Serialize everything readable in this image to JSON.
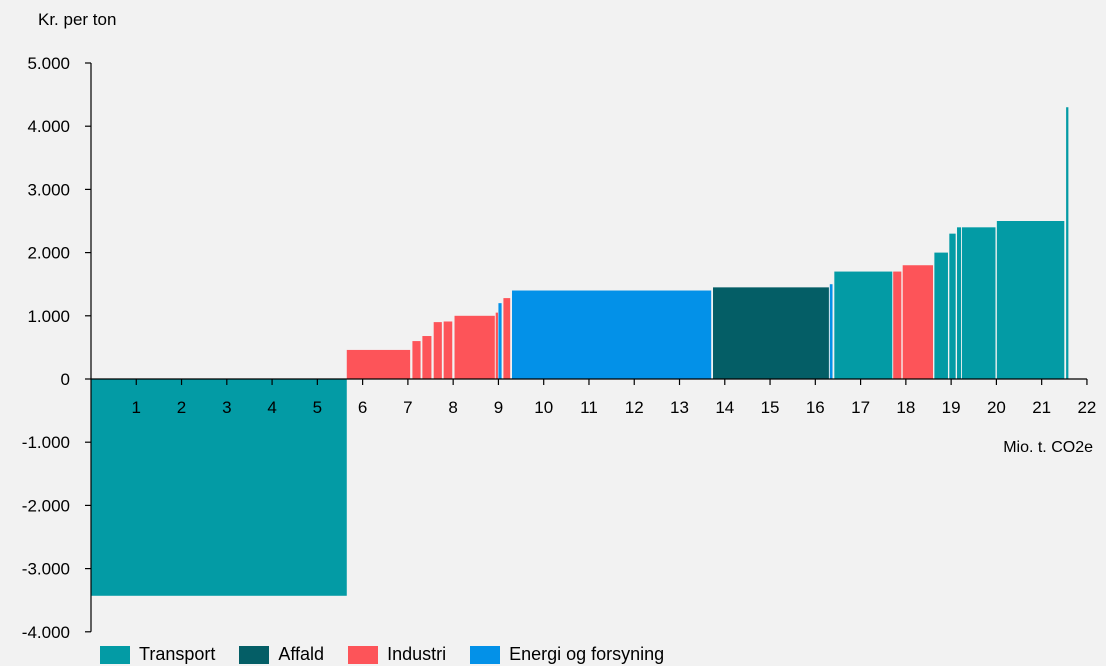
{
  "chart_data": {
    "type": "bar",
    "subtype": "variable-width bar (marginal abatement cost curve)",
    "ylabel": "Kr. per ton",
    "xlabel": "Mio. t. CO2e",
    "xlim": [
      0,
      22
    ],
    "ylim": [
      -4000,
      5000
    ],
    "x_ticks": [
      "1",
      "2",
      "3",
      "4",
      "5",
      "6",
      "7",
      "8",
      "9",
      "10",
      "11",
      "12",
      "13",
      "14",
      "15",
      "16",
      "17",
      "18",
      "19",
      "20",
      "21",
      "22"
    ],
    "y_ticks": [
      {
        "value": 5000,
        "label": "5.000"
      },
      {
        "value": 4000,
        "label": "4.000"
      },
      {
        "value": 3000,
        "label": "3.000"
      },
      {
        "value": 2000,
        "label": "2.000"
      },
      {
        "value": 1000,
        "label": "1.000"
      },
      {
        "value": 0,
        "label": "0"
      },
      {
        "value": -1000,
        "label": "-1.000"
      },
      {
        "value": -2000,
        "label": "-2.000"
      },
      {
        "value": -3000,
        "label": "-3.000"
      },
      {
        "value": -4000,
        "label": "-4.000"
      }
    ],
    "grid": false,
    "legend_position": "bottom",
    "categories": [
      {
        "name": "Transport",
        "color": "#039ba5"
      },
      {
        "name": "Affald",
        "color": "#045e66"
      },
      {
        "name": "Industri",
        "color": "#fd5459"
      },
      {
        "name": "Energi og forsyning",
        "color": "#0391e8"
      }
    ],
    "bars": [
      {
        "category": "Transport",
        "x_start": 0.0,
        "x_end": 5.65,
        "value": -3430
      },
      {
        "category": "Industri",
        "x_start": 5.65,
        "x_end": 7.05,
        "value": 460
      },
      {
        "category": "Industri",
        "x_start": 7.1,
        "x_end": 7.28,
        "value": 600
      },
      {
        "category": "Industri",
        "x_start": 7.32,
        "x_end": 7.52,
        "value": 680
      },
      {
        "category": "Industri",
        "x_start": 7.57,
        "x_end": 7.75,
        "value": 900
      },
      {
        "category": "Industri",
        "x_start": 7.79,
        "x_end": 7.98,
        "value": 910
      },
      {
        "category": "Industri",
        "x_start": 8.03,
        "x_end": 8.92,
        "value": 1000
      },
      {
        "category": "Industri",
        "x_start": 8.94,
        "x_end": 8.99,
        "value": 1050
      },
      {
        "category": "Energi og forsyning",
        "x_start": 9.0,
        "x_end": 9.07,
        "value": 1200
      },
      {
        "category": "Industri",
        "x_start": 9.11,
        "x_end": 9.26,
        "value": 1280
      },
      {
        "category": "Energi og forsyning",
        "x_start": 9.3,
        "x_end": 13.7,
        "value": 1400
      },
      {
        "category": "Affald",
        "x_start": 13.74,
        "x_end": 16.3,
        "value": 1450
      },
      {
        "category": "Energi og forsyning",
        "x_start": 16.32,
        "x_end": 16.38,
        "value": 1500
      },
      {
        "category": "Transport",
        "x_start": 16.42,
        "x_end": 17.7,
        "value": 1700
      },
      {
        "category": "Industri",
        "x_start": 17.72,
        "x_end": 17.9,
        "value": 1700
      },
      {
        "category": "Industri",
        "x_start": 17.93,
        "x_end": 18.6,
        "value": 1800
      },
      {
        "category": "Transport",
        "x_start": 18.63,
        "x_end": 18.93,
        "value": 2000
      },
      {
        "category": "Transport",
        "x_start": 18.96,
        "x_end": 19.1,
        "value": 2300
      },
      {
        "category": "Transport",
        "x_start": 19.13,
        "x_end": 19.22,
        "value": 2400
      },
      {
        "category": "Transport",
        "x_start": 19.24,
        "x_end": 19.98,
        "value": 2400
      },
      {
        "category": "Transport",
        "x_start": 20.01,
        "x_end": 21.5,
        "value": 2500
      },
      {
        "category": "Transport",
        "x_start": 21.54,
        "x_end": 21.59,
        "value": 4300
      }
    ]
  }
}
